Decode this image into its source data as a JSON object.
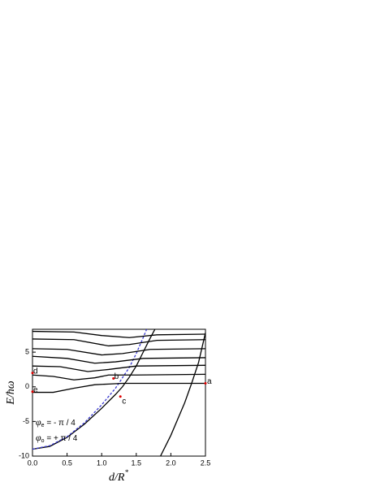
{
  "chart_data": {
    "type": "line",
    "xlabel": "d/R",
    "xlabel_sup": "*",
    "ylabel": "E/ħω",
    "xlim": [
      0,
      2.5
    ],
    "ylim": [
      -10,
      8.3
    ],
    "xticks": [
      {
        "value": 0,
        "label": "0.0"
      },
      0.5,
      {
        "value": 1,
        "label": "1.0"
      },
      1.5,
      {
        "value": 2,
        "label": "2.0"
      },
      2.5
    ],
    "yticks": [
      -10,
      -5,
      0,
      5
    ],
    "series": [
      {
        "color": "#000000",
        "linestyle": "solid",
        "x": [
          0,
          0.25,
          0.5,
          0.75,
          1.0,
          1.2,
          1.3,
          1.4,
          1.5,
          1.6,
          1.7,
          1.77
        ],
        "values": [
          -9,
          -8.6,
          -7.3,
          -5.4,
          -3.1,
          -1.1,
          0,
          1.4,
          3,
          5,
          7,
          8.3
        ]
      },
      {
        "color": "#3a3ad0",
        "linestyle": "dashed",
        "x": [
          0,
          0.25,
          0.5,
          0.75,
          1.0,
          1.2,
          1.4,
          1.5,
          1.6,
          1.65
        ],
        "values": [
          -9,
          -8.5,
          -7.2,
          -5.2,
          -2.6,
          -0.2,
          2.8,
          4.8,
          7.1,
          8.3
        ]
      },
      {
        "color": "#000000",
        "linestyle": "solid",
        "x": [
          0,
          0.3,
          0.6,
          0.9,
          1.1,
          1.3,
          1.6,
          2.5
        ],
        "values": [
          -0.8,
          -0.8,
          -0.2,
          0.3,
          0.4,
          0.5,
          0.5,
          0.5
        ]
      },
      {
        "color": "#000000",
        "linestyle": "solid",
        "x": [
          0,
          0.3,
          0.6,
          0.9,
          1.1,
          1.5,
          2.5
        ],
        "values": [
          1.7,
          1.5,
          1.0,
          1.3,
          1.7,
          1.7,
          1.8
        ]
      },
      {
        "color": "#000000",
        "linestyle": "solid",
        "x": [
          0,
          0.4,
          0.8,
          1.1,
          1.5,
          2.5
        ],
        "values": [
          3.0,
          2.9,
          2.2,
          2.5,
          3.0,
          3.1
        ]
      },
      {
        "color": "#000000",
        "linestyle": "solid",
        "x": [
          0,
          0.5,
          0.9,
          1.2,
          1.6,
          2.5
        ],
        "values": [
          4.4,
          4.1,
          3.4,
          3.6,
          4.1,
          4.2
        ]
      },
      {
        "color": "#000000",
        "linestyle": "solid",
        "x": [
          0,
          0.5,
          1.0,
          1.3,
          1.7,
          2.5
        ],
        "values": [
          5.5,
          5.4,
          4.6,
          4.8,
          5.4,
          5.5
        ]
      },
      {
        "color": "#000000",
        "linestyle": "solid",
        "x": [
          0,
          0.6,
          1.1,
          1.4,
          1.8,
          2.5
        ],
        "values": [
          6.9,
          6.8,
          5.9,
          6.1,
          6.7,
          6.8
        ]
      },
      {
        "color": "#000000",
        "linestyle": "solid",
        "x": [
          0,
          0.6,
          1.0,
          1.4,
          1.8,
          2.5
        ],
        "values": [
          8.0,
          7.9,
          7.4,
          7.1,
          7.5,
          7.6
        ]
      },
      {
        "color": "#000000",
        "linestyle": "solid",
        "x": [
          1.85,
          2.0,
          2.2,
          2.3,
          2.4,
          2.5
        ],
        "values": [
          -10,
          -7,
          -2.3,
          0.5,
          3.5,
          7.8
        ]
      }
    ],
    "points": [
      {
        "label": "a",
        "x": 2.5,
        "y": 0.5
      },
      {
        "label": "b",
        "x": 1.17,
        "y": 1.2
      },
      {
        "label": "c",
        "x": 1.27,
        "y": -1.4
      },
      {
        "label": "d",
        "x": 0,
        "y": 2.0
      },
      {
        "label": "e",
        "x": 0,
        "y": -0.7
      }
    ],
    "point_color": "#e00000",
    "annotations": [
      {
        "symbol": "φ",
        "sub": "e",
        "text": " = - π / 4"
      },
      {
        "symbol": "φ",
        "sub": "o",
        "text": " = + π / 4"
      }
    ]
  }
}
